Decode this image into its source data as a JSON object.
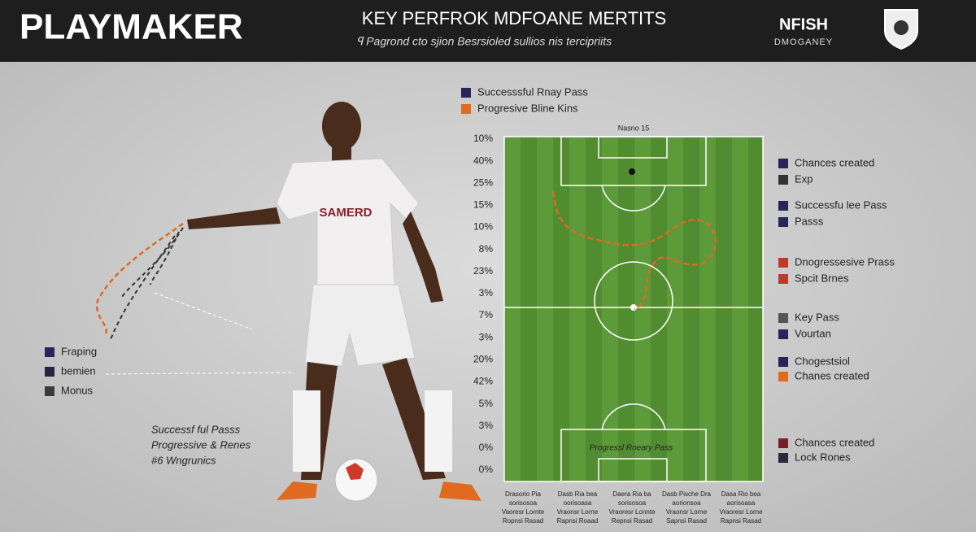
{
  "header": {
    "title": "PLAYMAKER",
    "heading": "KEY PERFROK MDFOANE MERTITS",
    "subheading": "ꟼ Pagrond cto sjion Besrsioled sullios nis tercipriits",
    "brand": "NFISH",
    "brand_sub": "DMOGANEY"
  },
  "left_legend": [
    {
      "label": "Fraping",
      "color": "#26265a"
    },
    {
      "label": "bemien",
      "color": "#2a2240"
    },
    {
      "label": "Monus",
      "color": "#3a3a3a"
    }
  ],
  "left_notes": [
    "Successf ful Passs",
    "Progressive & Renes",
    "#6 Wngrunics"
  ],
  "pitch_legend": [
    {
      "label": "Successsful Rnay Pass",
      "color": "#26265a"
    },
    {
      "label": "Progresive Bline Kins",
      "color": "#e06a20"
    }
  ],
  "pitch_caption": "Nasno 15",
  "pitch_box_label": "Progressl Roeary Pass",
  "side_labels": [
    "10%",
    "40%",
    "25%",
    "15%",
    "10%",
    "8%",
    "23%",
    "3%",
    "7%",
    "3%",
    "20%",
    "42%",
    "5%",
    "3%",
    "0%",
    "0%"
  ],
  "right_legend": [
    {
      "label": "Chances created",
      "color": "#26265a"
    },
    {
      "label": "Exp",
      "color": "#333333"
    },
    {
      "label": "Successfu lee Pass",
      "color": "#26265a"
    },
    {
      "label": "Passs",
      "color": "#26265a"
    },
    {
      "label": "Dnogressesive Prass",
      "color": "#c0392b"
    },
    {
      "label": "Spcit Brnes",
      "color": "#c0392b"
    },
    {
      "label": "Key Pass",
      "color": "#555555"
    },
    {
      "label": "Vourtan",
      "color": "#26265a"
    },
    {
      "label": "Chogestsiol",
      "color": "#26265a"
    },
    {
      "label": "Chanes created",
      "color": "#e06a20"
    },
    {
      "label": "Chances created",
      "color": "#7a1f2a"
    },
    {
      "label": "Lock Rones",
      "color": "#2a2a3a"
    }
  ],
  "bottom_columns": [
    [
      "Drasorio Pia",
      "sorisosoa",
      "Vaoresr Lornte",
      "Ropnsi Rasad"
    ],
    [
      "Dasb Ria bea",
      "oorisoasa",
      "Vraonsr Lorne",
      "Rapnsi Roaad"
    ],
    [
      "Daera Ria ba",
      "sorisosoa",
      "Vraoresr Lonnte",
      "Repnsi Rasad"
    ],
    [
      "Dasb Pische Dra",
      "aorionsoa",
      "Vraonsr Lorne",
      "Sapnsi Rasad"
    ],
    [
      "Dasa Rio bea",
      "aorisoasa",
      "Vraoresr Lorne",
      "Rapnsi Rasad"
    ]
  ]
}
